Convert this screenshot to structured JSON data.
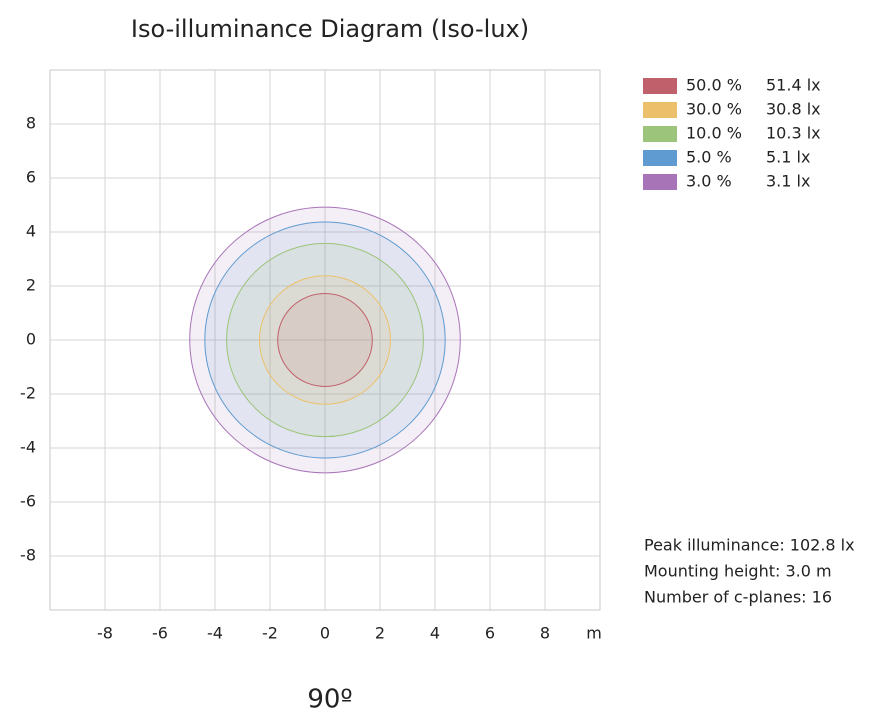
{
  "chart_data": {
    "type": "isolux",
    "title": "Iso-illuminance Diagram (Iso-lux)",
    "x_unit": "m",
    "angle_label": "90º",
    "xlim": [
      -10,
      10
    ],
    "ylim": [
      -10,
      10
    ],
    "xticks": [
      -8,
      -6,
      -4,
      -2,
      0,
      2,
      4,
      6,
      8
    ],
    "yticks": [
      -8,
      -6,
      -4,
      -2,
      0,
      2,
      4,
      6,
      8
    ],
    "grid": true,
    "series": [
      {
        "name": "50.0 %",
        "value": 51.4,
        "value_label": "51.4 lx",
        "color": "#c0606a",
        "radius": 1.72
      },
      {
        "name": "30.0 %",
        "value": 30.8,
        "value_label": "30.8 lx",
        "color": "#ecc06a",
        "radius": 2.38
      },
      {
        "name": "10.0 %",
        "value": 10.3,
        "value_label": "10.3 lx",
        "color": "#9cc47a",
        "radius": 3.58
      },
      {
        "name": "5.0 %",
        "value": 5.1,
        "value_label": "5.1 lx",
        "color": "#5f9bd0",
        "radius": 4.37
      },
      {
        "name": "3.0 %",
        "value": 3.1,
        "value_label": "3.1 lx",
        "color": "#a874b8",
        "radius": 4.92
      }
    ],
    "annotations": [
      "Peak illuminance: 102.8 lx",
      "Mounting height: 3.0 m",
      "Number of c-planes: 16"
    ]
  }
}
